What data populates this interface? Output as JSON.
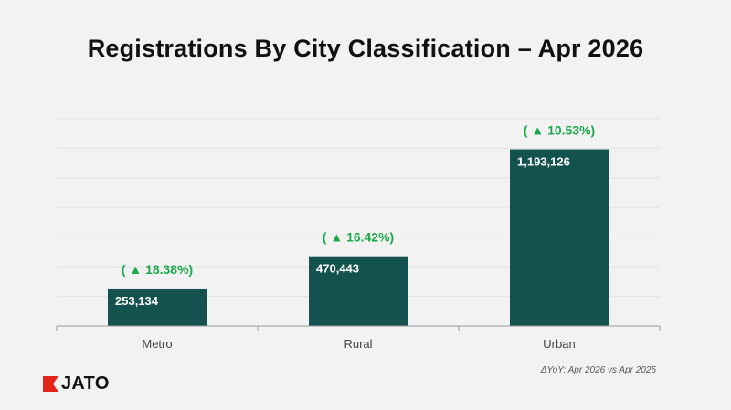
{
  "title": "Registrations By City Classification – Apr 2026",
  "footnote": "ΔYoY: Apr 2026 vs Apr 2025",
  "logo": {
    "text": "JATO",
    "icon": "jato-flag-icon",
    "color": "#e1251b"
  },
  "colors": {
    "bar": "#14524f",
    "growth": "#1aa84a",
    "bar_label": "#ffffff",
    "axis": "#999999",
    "grid": "#e3e3e3"
  },
  "chart_data": {
    "type": "bar",
    "categories": [
      "Metro",
      "Rural",
      "Urban"
    ],
    "values": [
      253134,
      470443,
      1193126
    ],
    "value_labels": [
      "253,134",
      "470,443",
      "1,193,126"
    ],
    "growth_labels": [
      "18.38%",
      "16.42%",
      "10.53%"
    ],
    "growth_direction": "up",
    "ylim": [
      0,
      1400000
    ],
    "grid": true,
    "legend": "none"
  }
}
